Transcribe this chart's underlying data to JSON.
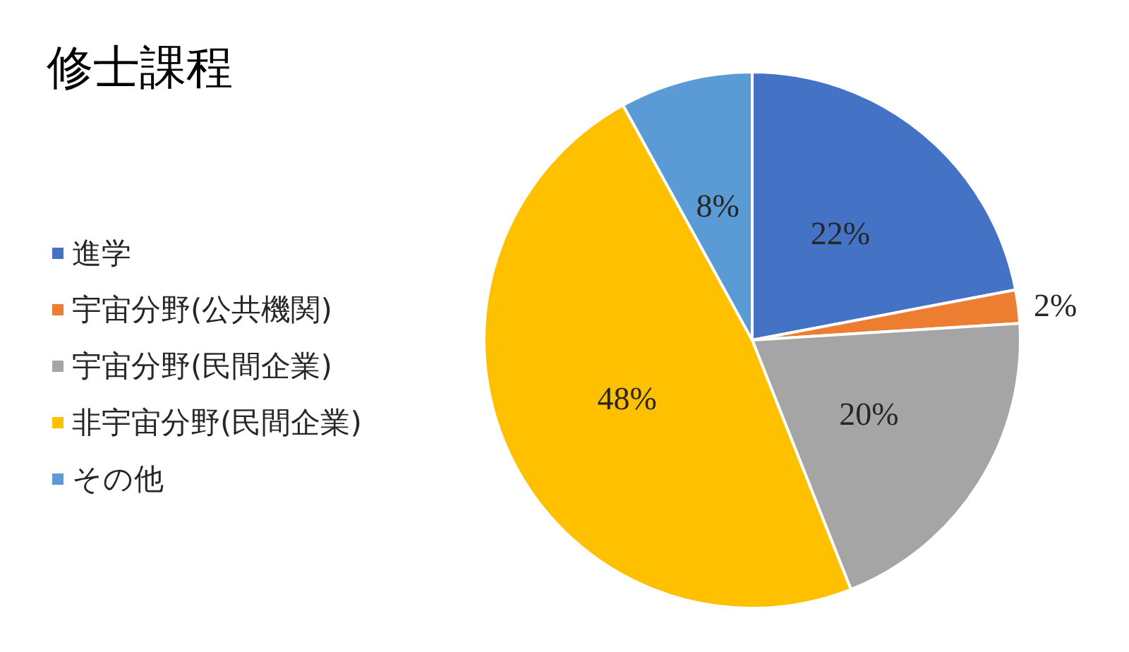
{
  "chart_data": {
    "type": "pie",
    "title": "修士課程",
    "categories": [
      "進学",
      "宇宙分野(公共機関)",
      "宇宙分野(民間企業)",
      "非宇宙分野(民間企業)",
      "その他"
    ],
    "values": [
      22,
      2,
      20,
      48,
      8
    ],
    "colors": [
      "#4472c4",
      "#ed7d31",
      "#a5a5a5",
      "#ffc000",
      "#5b9bd5"
    ],
    "value_labels": [
      "22%",
      "2%",
      "20%",
      "48%",
      "8%"
    ],
    "legend": "left"
  }
}
